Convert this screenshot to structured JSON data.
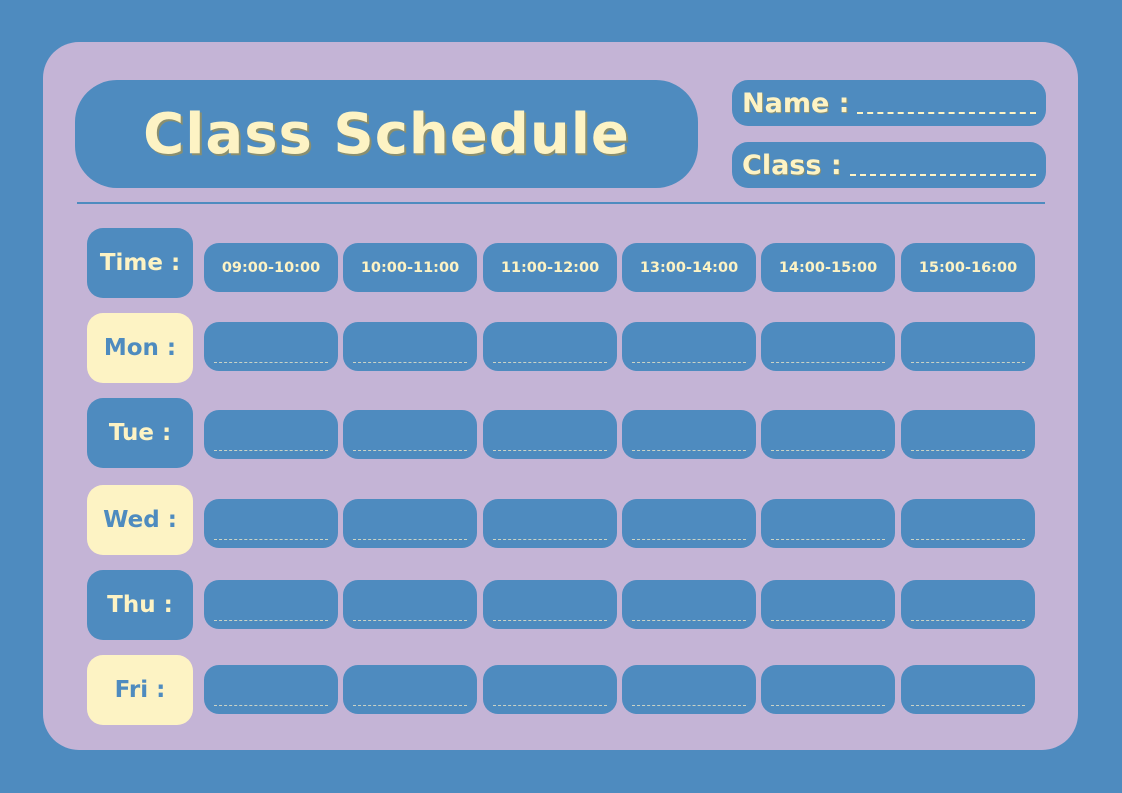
{
  "title": "Class Schedule",
  "fields": {
    "name_label": "Name :",
    "class_label": "Class :"
  },
  "time_label": "Time :",
  "times": [
    "09:00-10:00",
    "10:00-11:00",
    "11:00-12:00",
    "13:00-14:00",
    "14:00-15:00",
    "15:00-16:00"
  ],
  "days": [
    "Mon :",
    "Tue :",
    "Wed :",
    "Thu :",
    "Fri :"
  ],
  "colors": {
    "background": "#4e8bbf",
    "card": "#c4b4d6",
    "cream": "#fdf3c4"
  }
}
